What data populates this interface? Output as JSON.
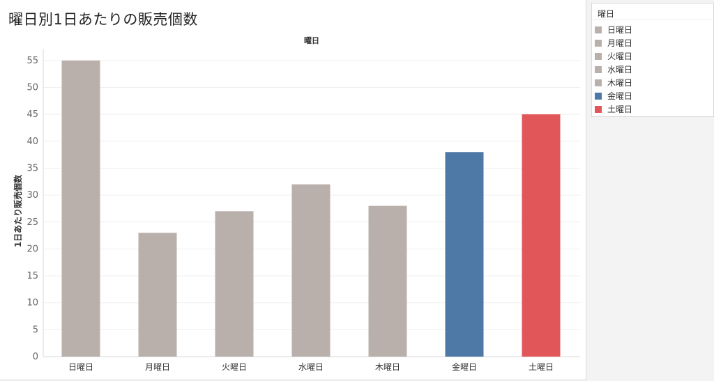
{
  "title": "曜日別1日あたりの販売個数",
  "legend": {
    "title": "曜日",
    "items": [
      {
        "label": "日曜日",
        "color": "#bab0ab"
      },
      {
        "label": "月曜日",
        "color": "#bab0ab"
      },
      {
        "label": "火曜日",
        "color": "#bab0ab"
      },
      {
        "label": "水曜日",
        "color": "#bab0ab"
      },
      {
        "label": "木曜日",
        "color": "#bab0ab"
      },
      {
        "label": "金曜日",
        "color": "#4e79a7"
      },
      {
        "label": "土曜日",
        "color": "#e15759"
      }
    ]
  },
  "chart_data": {
    "type": "bar",
    "title": "曜日別1日あたりの販売個数",
    "column_header": "曜日",
    "xlabel": "",
    "ylabel": "1日あたり販売個数",
    "categories": [
      "日曜日",
      "月曜日",
      "火曜日",
      "水曜日",
      "木曜日",
      "金曜日",
      "土曜日"
    ],
    "values": [
      55,
      23,
      27,
      32,
      28,
      38,
      45
    ],
    "colors": [
      "#bab0ab",
      "#bab0ab",
      "#bab0ab",
      "#bab0ab",
      "#bab0ab",
      "#4e79a7",
      "#e15759"
    ],
    "yticks": [
      0,
      5,
      10,
      15,
      20,
      25,
      30,
      35,
      40,
      45,
      50,
      55
    ],
    "ylim": [
      0,
      57
    ],
    "grid": true,
    "legend_position": "right"
  }
}
